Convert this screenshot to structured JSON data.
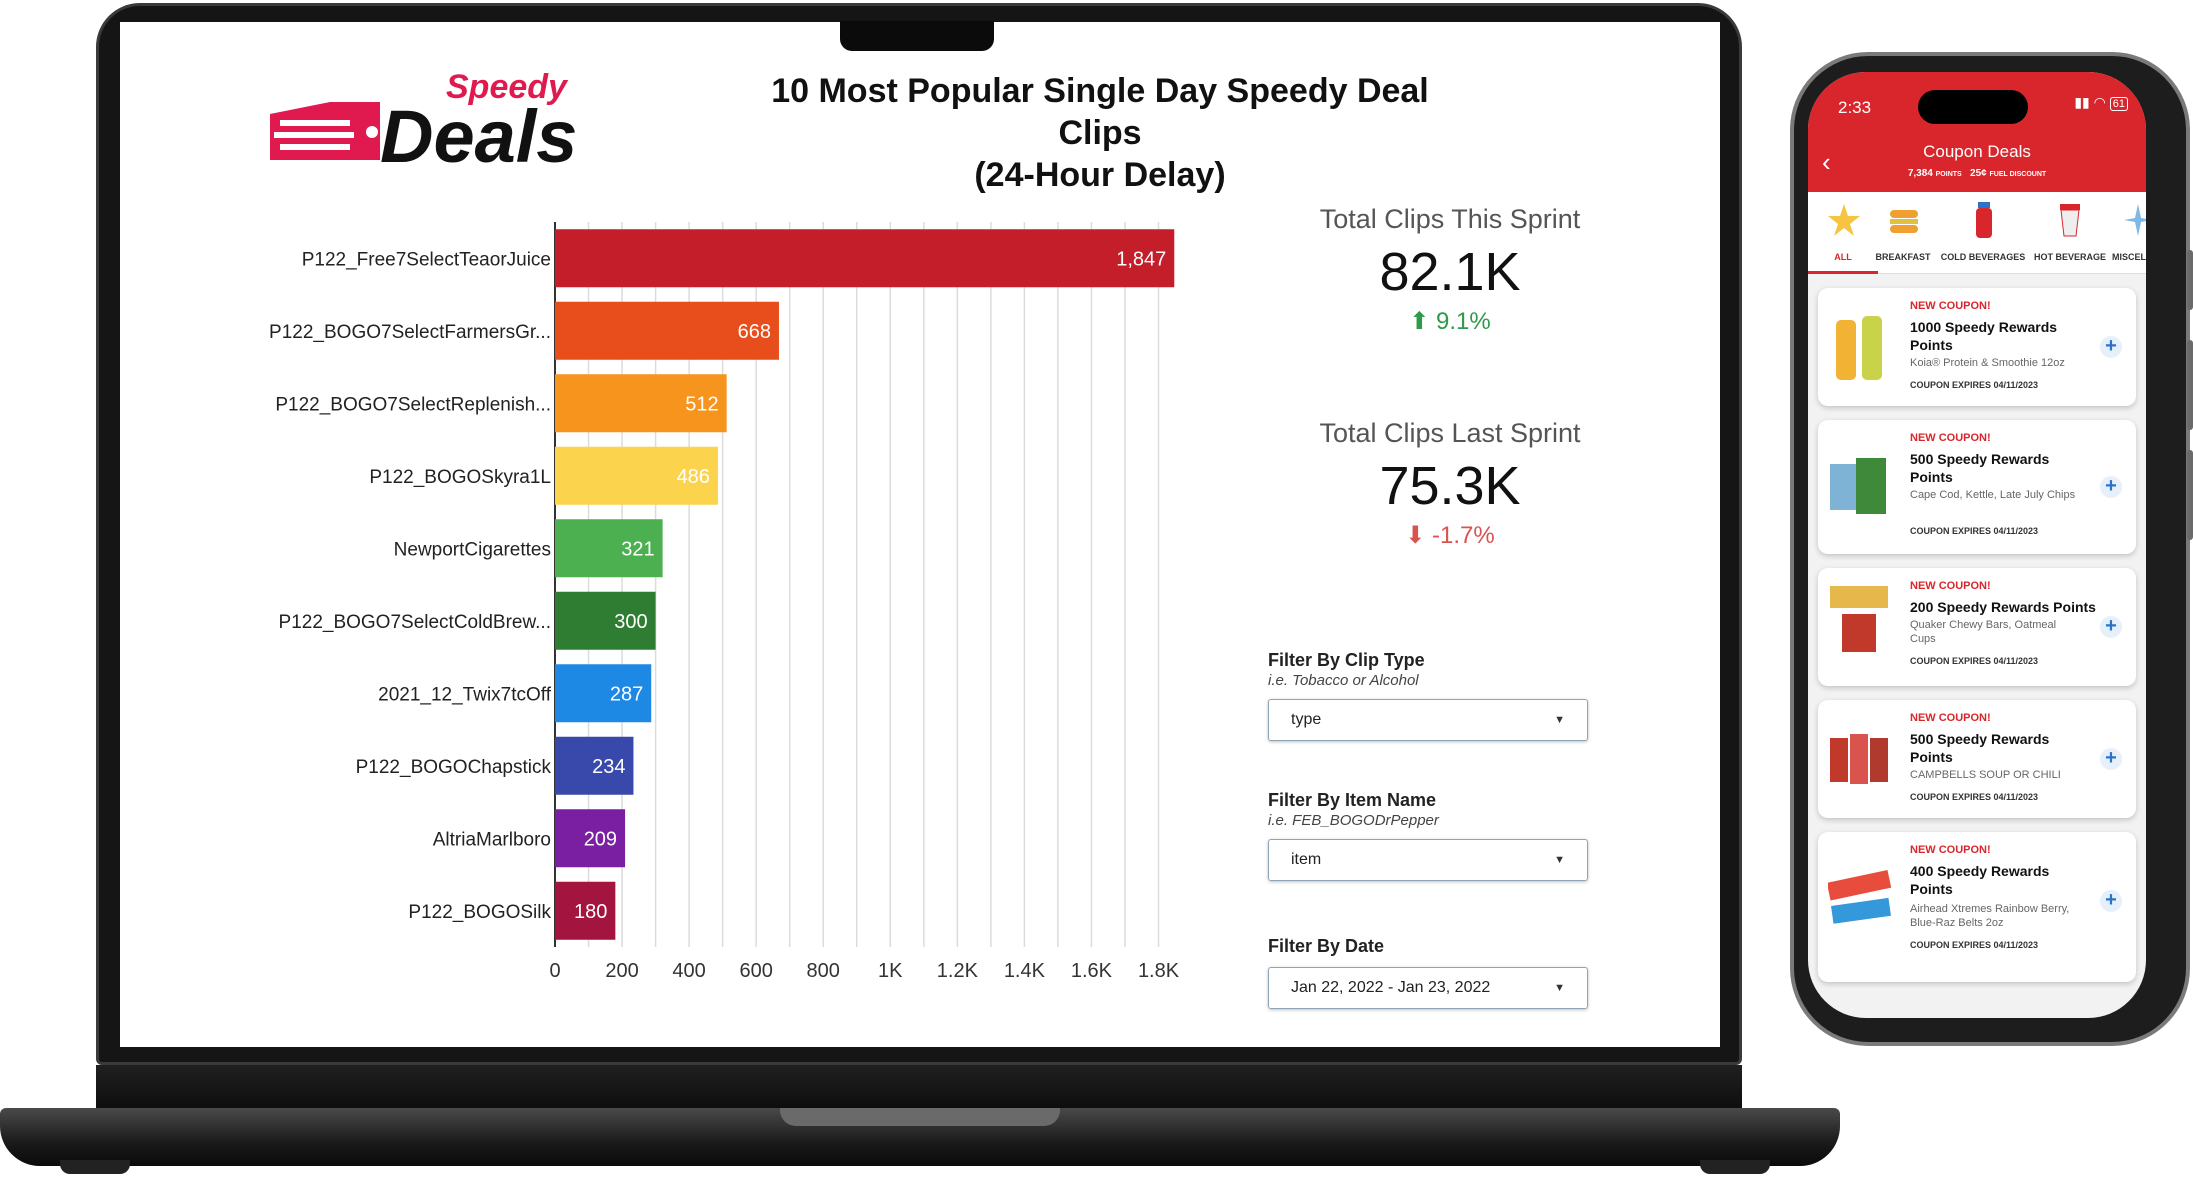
{
  "dashboard": {
    "logo_top": "Speedy",
    "logo_bottom": "Deals",
    "title_line1": "10 Most Popular Single Day Speedy Deal Clips",
    "title_line2": "(24-Hour Delay)",
    "kpis": [
      {
        "label": "Total Clips This Sprint",
        "value": "82.1K",
        "delta": "9.1%",
        "direction": "up"
      },
      {
        "label": "Total Clips Last Sprint",
        "value": "75.3K",
        "delta": "-1.7%",
        "direction": "down"
      }
    ],
    "filters": [
      {
        "title": "Filter By Clip Type",
        "hint": "i.e. Tobacco or Alcohol",
        "value": "type"
      },
      {
        "title": "Filter By Item Name",
        "hint": "i.e. FEB_BOGODrPepper",
        "value": "item"
      },
      {
        "title": "Filter By Date",
        "hint": "",
        "value": "Jan 22, 2022 - Jan 23, 2022"
      }
    ]
  },
  "chart_data": {
    "type": "bar",
    "orientation": "horizontal",
    "categories": [
      "P122_Free7SelectTeaorJuice",
      "P122_BOGO7SelectFarmersGr...",
      "P122_BOGO7SelectReplenish...",
      "P122_BOGOSkyra1L",
      "NewportCigarettes",
      "P122_BOGO7SelectColdBrew...",
      "2021_12_Twix7tcOff",
      "P122_BOGOChapstick",
      "AltriaMarlboro",
      "P122_BOGOSilk"
    ],
    "values": [
      1847,
      668,
      512,
      486,
      321,
      300,
      287,
      234,
      209,
      180
    ],
    "value_labels": [
      "1,847",
      "668",
      "512",
      "486",
      "321",
      "300",
      "287",
      "234",
      "209",
      "180"
    ],
    "colors": [
      "#c41e2a",
      "#e84e1b",
      "#f7941d",
      "#fcd34d",
      "#4caf50",
      "#2e7d32",
      "#1e88e5",
      "#3949ab",
      "#7b1fa2",
      "#a3143f"
    ],
    "xlim": [
      0,
      1900
    ],
    "xticks": [
      0,
      200,
      400,
      600,
      800,
      1000,
      1200,
      1400,
      1600,
      1800
    ],
    "xtick_labels": [
      "0",
      "200",
      "400",
      "600",
      "800",
      "1K",
      "1.2K",
      "1.4K",
      "1.6K",
      "1.8K"
    ],
    "grid": true
  },
  "phone": {
    "time": "2:33",
    "battery": "61",
    "title": "Coupon Deals",
    "points": "7,384",
    "points_label": "POINTS",
    "fuel": "25¢",
    "fuel_label": "FUEL DISCOUNT",
    "categories": [
      "ALL",
      "BREAKFAST",
      "COLD BEVERAGES",
      "HOT BEVERAGE",
      "MISCELL"
    ],
    "coupons": [
      {
        "badge": "NEW COUPON!",
        "title": "1000 Speedy Rewards Points",
        "desc": "Koia® Protein & Smoothie 12oz",
        "expires": "COUPON EXPIRES 04/11/2023"
      },
      {
        "badge": "NEW COUPON!",
        "title": "500 Speedy Rewards Points",
        "desc": "Cape Cod, Kettle, Late July Chips",
        "expires": "COUPON EXPIRES 04/11/2023"
      },
      {
        "badge": "NEW COUPON!",
        "title": "200 Speedy Rewards Points",
        "desc": "Quaker Chewy Bars, Oatmeal Cups",
        "expires": "COUPON EXPIRES 04/11/2023"
      },
      {
        "badge": "NEW COUPON!",
        "title": "500 Speedy Rewards Points",
        "desc": "CAMPBELLS SOUP OR CHILI",
        "expires": "COUPON EXPIRES 04/11/2023"
      },
      {
        "badge": "NEW COUPON!",
        "title": "400 Speedy Rewards Points",
        "desc": "Airhead Xtremes Rainbow Berry, Blue-Raz Belts 2oz",
        "expires": "COUPON EXPIRES 04/11/2023"
      }
    ],
    "colors": {
      "brand_red": "#d9262c",
      "accent_blue": "#2b72c9"
    }
  }
}
